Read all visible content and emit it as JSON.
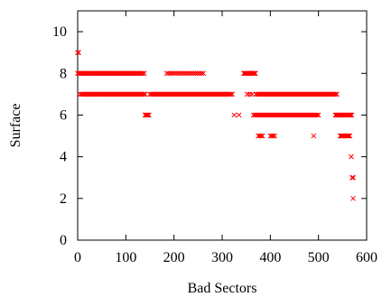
{
  "chart_data": {
    "type": "scatter",
    "title": "",
    "xlabel": "Bad Sectors",
    "ylabel": "Surface",
    "xlim": [
      0,
      600
    ],
    "ylim": [
      0,
      11
    ],
    "xticks": [
      0,
      100,
      200,
      300,
      400,
      500,
      600
    ],
    "yticks": [
      0,
      2,
      4,
      6,
      8,
      10
    ],
    "grid": false,
    "legend": "none",
    "marker": "x",
    "marker_color": "#ff0000",
    "series": [
      {
        "segments": [
          {
            "y": 9,
            "x_from": 0,
            "x_to": 2,
            "step": 2
          },
          {
            "y": 8,
            "x_from": 0,
            "x_to": 140,
            "step": 3
          },
          {
            "y": 8,
            "x_from": 185,
            "x_to": 262,
            "step": 4
          },
          {
            "y": 8,
            "x_from": 345,
            "x_to": 370,
            "step": 2
          },
          {
            "y": 7,
            "x_from": 5,
            "x_to": 140,
            "step": 3
          },
          {
            "y": 7,
            "x_from": 150,
            "x_to": 322,
            "step": 3
          },
          {
            "y": 7,
            "x_from": 352,
            "x_to": 362,
            "step": 5
          },
          {
            "y": 7,
            "x_from": 370,
            "x_to": 540,
            "step": 3
          },
          {
            "y": 6,
            "x_from": 140,
            "x_to": 148,
            "step": 2
          },
          {
            "y": 6,
            "x_from": 325,
            "x_to": 335,
            "step": 10
          },
          {
            "y": 6,
            "x_from": 365,
            "x_to": 500,
            "step": 3
          },
          {
            "y": 6,
            "x_from": 535,
            "x_to": 570,
            "step": 2
          },
          {
            "y": 5,
            "x_from": 375,
            "x_to": 385,
            "step": 3
          },
          {
            "y": 5,
            "x_from": 400,
            "x_to": 410,
            "step": 3
          },
          {
            "y": 5,
            "x_from": 490,
            "x_to": 490,
            "step": 1
          },
          {
            "y": 5,
            "x_from": 545,
            "x_to": 565,
            "step": 2
          }
        ],
        "points": [
          [
            568,
            4
          ],
          [
            570,
            3
          ],
          [
            572,
            3
          ],
          [
            572,
            2
          ]
        ]
      }
    ]
  }
}
